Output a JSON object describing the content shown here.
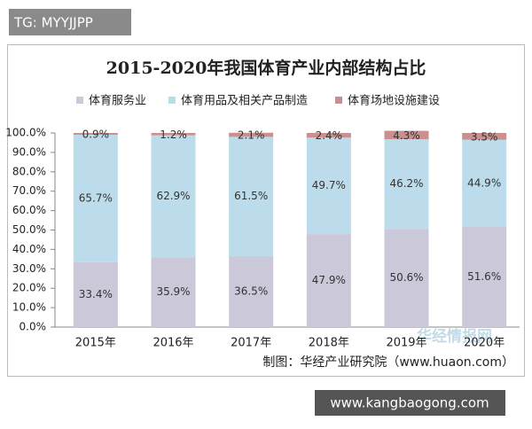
{
  "header_tag": "TG: MYYJJPP",
  "footer_watermark": "www.kangbaogong.com",
  "chart_data": {
    "type": "stacked-bar",
    "title": "2015-2020年我国体育产业内部结构占比",
    "source": "制图：华经产业研究院（www.huaon.com）",
    "watermark": "华经情报网",
    "categories": [
      "2015年",
      "2016年",
      "2017年",
      "2018年",
      "2019年",
      "2020年"
    ],
    "series": [
      {
        "name": "体育服务业",
        "color": "#cbc8da",
        "values": [
          33.4,
          35.9,
          36.5,
          47.9,
          50.6,
          51.6
        ],
        "value_labels": [
          "33.4%",
          "35.9%",
          "36.5%",
          "47.9%",
          "50.6%",
          "51.6%"
        ]
      },
      {
        "name": "体育用品及相关产品制造",
        "color": "#bcdceb",
        "values": [
          65.7,
          62.9,
          61.5,
          49.7,
          46.2,
          44.9
        ],
        "value_labels": [
          "65.7%",
          "62.9%",
          "61.5%",
          "49.7%",
          "46.2%",
          "44.9%"
        ]
      },
      {
        "name": "体育场地设施建设",
        "color": "#c9908f",
        "values": [
          0.9,
          1.2,
          2.1,
          2.4,
          4.3,
          3.5
        ],
        "value_labels": [
          "0.9%",
          "1.2%",
          "2.1%",
          "2.4%",
          "4.3%",
          "3.5%"
        ]
      }
    ],
    "ylim": [
      0,
      100
    ],
    "yticks": [
      {
        "value": 0,
        "label": "0.0%"
      },
      {
        "value": 10,
        "label": "10.0%"
      },
      {
        "value": 20,
        "label": "20.0%"
      },
      {
        "value": 30,
        "label": "30.0%"
      },
      {
        "value": 40,
        "label": "40.0%"
      },
      {
        "value": 50,
        "label": "50.0%"
      },
      {
        "value": 60,
        "label": "60.0%"
      },
      {
        "value": 70,
        "label": "70.0%"
      },
      {
        "value": 80,
        "label": "80.0%"
      },
      {
        "value": 90,
        "label": "90.0%"
      },
      {
        "value": 100,
        "label": "100.0%"
      }
    ],
    "legend": "top"
  }
}
